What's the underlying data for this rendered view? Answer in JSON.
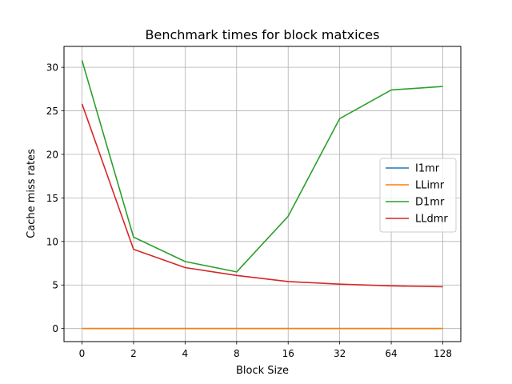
{
  "chart_data": {
    "type": "line",
    "title": "Benchmark times for block matxices",
    "xlabel": "Block Size",
    "ylabel": "Cache miss rates",
    "categories": [
      "0",
      "2",
      "4",
      "8",
      "16",
      "32",
      "64",
      "128"
    ],
    "ylim": [
      -1.5,
      32.4
    ],
    "yticks": [
      0,
      5,
      10,
      15,
      20,
      25,
      30
    ],
    "grid": true,
    "legend_position": "center-right",
    "series": [
      {
        "name": "I1mr",
        "color": "#1f77b4",
        "values": [
          0,
          0,
          0,
          0,
          0,
          0,
          0,
          0
        ]
      },
      {
        "name": "LLimr",
        "color": "#ff7f0e",
        "values": [
          0,
          0,
          0,
          0,
          0,
          0,
          0,
          0
        ]
      },
      {
        "name": "D1mr",
        "color": "#2ca02c",
        "values": [
          30.8,
          10.5,
          7.7,
          6.5,
          12.9,
          24.1,
          27.4,
          27.8
        ]
      },
      {
        "name": "LLdmr",
        "color": "#d62728",
        "values": [
          25.8,
          9.1,
          7.0,
          6.1,
          5.4,
          5.1,
          4.9,
          4.8
        ]
      }
    ]
  }
}
